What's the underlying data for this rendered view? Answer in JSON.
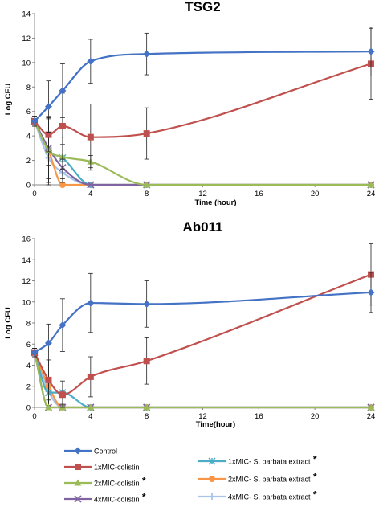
{
  "chart_data": [
    {
      "type": "line",
      "title": "TSG2",
      "xlabel": "Time (hour)",
      "ylabel": "Log CFU",
      "xlim": [
        0,
        24
      ],
      "ylim": [
        0,
        14
      ],
      "x_ticks": [
        "0",
        "4",
        "8",
        "12",
        "16",
        "20",
        "24"
      ],
      "y_ticks": [
        "0",
        "2",
        "4",
        "6",
        "8",
        "10",
        "12",
        "14"
      ],
      "series": [
        {
          "name": "Control",
          "color": "#4472C4",
          "marker": "diamond",
          "x": [
            0,
            1,
            2,
            4,
            8,
            24
          ],
          "y": [
            5.2,
            6.4,
            7.7,
            10.1,
            10.7,
            10.9
          ],
          "err": [
            0.4,
            2.1,
            2.2,
            1.8,
            1.7,
            2.0
          ]
        },
        {
          "name": "1xMIC-colistin",
          "color": "#C0504D",
          "marker": "square",
          "x": [
            0,
            1,
            2,
            4,
            8,
            24
          ],
          "y": [
            5.2,
            4.1,
            4.8,
            3.9,
            4.2,
            9.9
          ],
          "err": [
            0.4,
            1.4,
            2.7,
            2.7,
            2.1,
            2.9
          ]
        },
        {
          "name": "2xMIC-colistin",
          "color": "#9BBB59",
          "marker": "triangle",
          "x": [
            0,
            1,
            2,
            4,
            8,
            24
          ],
          "y": [
            5.2,
            2.8,
            2.3,
            1.9,
            0,
            0
          ],
          "err": [
            0.4,
            1.2,
            1.0,
            0.5,
            0,
            0
          ]
        },
        {
          "name": "4xMIC-colistin",
          "color": "#8064A2",
          "marker": "x",
          "x": [
            0,
            1,
            2,
            4,
            8,
            24
          ],
          "y": [
            5.2,
            3.0,
            1.4,
            0,
            0,
            0
          ],
          "err": [
            0.4,
            2.5,
            1.2,
            0,
            0,
            0
          ]
        },
        {
          "name": "1xMIC- S. barbata extract",
          "color": "#4BACC6",
          "marker": "star",
          "x": [
            0,
            1,
            2,
            4,
            8,
            24
          ],
          "y": [
            5.2,
            2.8,
            2.2,
            0,
            0,
            0
          ],
          "err": [
            0.4,
            2.6,
            1.7,
            0,
            0,
            0
          ]
        },
        {
          "name": "2xMIC- S. barbata extract",
          "color": "#F79646",
          "marker": "circle",
          "x": [
            0,
            1,
            2,
            4,
            8,
            24
          ],
          "y": [
            5.2,
            2.8,
            0,
            0,
            0,
            0
          ],
          "err": [
            0.4,
            2.8,
            0,
            0,
            0,
            0
          ]
        },
        {
          "name": "4xMIC- S. barbata extract",
          "color": "#A9C4E8",
          "marker": "plus",
          "x": [
            0,
            1,
            2,
            4,
            8,
            24
          ],
          "y": [
            5.2,
            2.2,
            1.0,
            0,
            0,
            0
          ],
          "err": [
            0.4,
            2.0,
            0.9,
            0,
            0,
            0
          ]
        }
      ]
    },
    {
      "type": "line",
      "title": "Ab011",
      "xlabel": "Time(hour)",
      "ylabel": "Log CFU",
      "xlim": [
        0,
        24
      ],
      "ylim": [
        0,
        16
      ],
      "x_ticks": [
        "0",
        "4",
        "8",
        "12",
        "16",
        "20",
        "24"
      ],
      "y_ticks": [
        "0",
        "2",
        "4",
        "6",
        "8",
        "10",
        "12",
        "14",
        "16"
      ],
      "series": [
        {
          "name": "Control",
          "color": "#4472C4",
          "marker": "diamond",
          "x": [
            0,
            1,
            2,
            4,
            8,
            24
          ],
          "y": [
            5.2,
            6.1,
            7.8,
            9.9,
            9.8,
            10.9
          ],
          "err": [
            0.4,
            1.8,
            2.5,
            2.8,
            2.2,
            1.9
          ]
        },
        {
          "name": "1xMIC-colistin",
          "color": "#C0504D",
          "marker": "square",
          "x": [
            0,
            1,
            2,
            4,
            8,
            24
          ],
          "y": [
            5.2,
            2.6,
            1.2,
            2.9,
            4.4,
            12.6
          ],
          "err": [
            0.4,
            1.9,
            1.2,
            1.9,
            2.2,
            2.9
          ]
        },
        {
          "name": "2xMIC-colistin",
          "color": "#9BBB59",
          "marker": "triangle",
          "x": [
            0,
            1,
            2,
            4,
            8,
            24
          ],
          "y": [
            5.2,
            0,
            0,
            0,
            0,
            0
          ],
          "err": [
            0.4,
            0,
            0,
            0,
            0,
            0
          ]
        },
        {
          "name": "4xMIC-colistin",
          "color": "#8064A2",
          "marker": "x",
          "x": [
            0,
            1,
            2,
            4,
            8,
            24
          ],
          "y": [
            5.2,
            0,
            0,
            0,
            0,
            0
          ],
          "err": [
            0.4,
            0,
            0,
            0,
            0,
            0
          ]
        },
        {
          "name": "1xMIC- S. barbata extract",
          "color": "#4BACC6",
          "marker": "star",
          "x": [
            0,
            1,
            2,
            4,
            8,
            24
          ],
          "y": [
            5.2,
            1.4,
            1.4,
            0,
            0,
            0
          ],
          "err": [
            0.4,
            1.2,
            1.1,
            0,
            0,
            0
          ]
        },
        {
          "name": "2xMIC- S. barbata extract",
          "color": "#F79646",
          "marker": "circle",
          "x": [
            0,
            1,
            2,
            4,
            8,
            24
          ],
          "y": [
            5.2,
            2.0,
            0,
            0,
            0,
            0
          ],
          "err": [
            0.4,
            2.3,
            0,
            0,
            0,
            0
          ]
        },
        {
          "name": "4xMIC- S. barbata extract",
          "color": "#A9C4E8",
          "marker": "plus",
          "x": [
            0,
            1,
            2,
            4,
            8,
            24
          ],
          "y": [
            5.2,
            1.5,
            0,
            0,
            0,
            0
          ],
          "err": [
            0.4,
            1.3,
            0,
            0,
            0,
            0
          ]
        }
      ]
    }
  ],
  "legend": {
    "placement": "bottom",
    "entries": [
      {
        "name": "Control",
        "color": "#4472C4",
        "marker": "diamond",
        "asterisk": ""
      },
      {
        "name": "1xMIC-colistin",
        "color": "#C0504D",
        "marker": "square",
        "asterisk": ""
      },
      {
        "name": "2xMIC-colistin",
        "color": "#9BBB59",
        "marker": "triangle",
        "asterisk": "*"
      },
      {
        "name": "4xMIC-colistin",
        "color": "#8064A2",
        "marker": "x",
        "asterisk": "*"
      },
      {
        "name": "1xMIC- S. barbata extract",
        "color": "#4BACC6",
        "marker": "star",
        "asterisk": "*"
      },
      {
        "name": "2xMIC- S. barbata extract",
        "color": "#F79646",
        "marker": "circle",
        "asterisk": "*"
      },
      {
        "name": "4xMIC- S. barbata extract",
        "color": "#A9C4E8",
        "marker": "plus",
        "asterisk": "*"
      }
    ]
  }
}
